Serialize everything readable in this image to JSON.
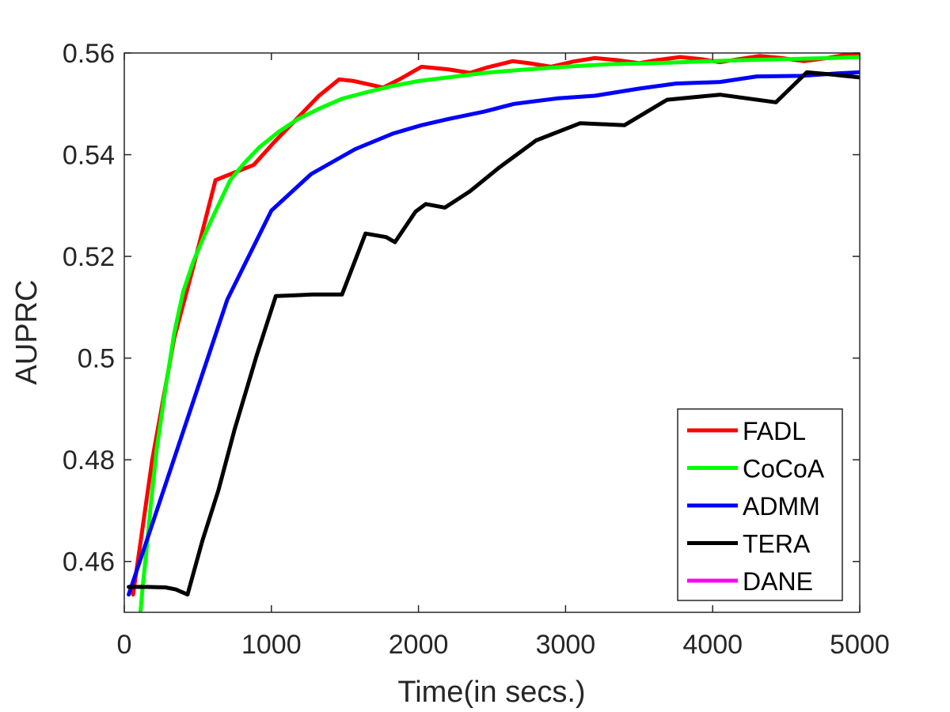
{
  "chart_data": {
    "type": "line",
    "xlabel": "Time(in secs.)",
    "ylabel": "AUPRC",
    "xlim": [
      0,
      5000
    ],
    "ylim": [
      0.45,
      0.56
    ],
    "x_ticks": [
      0,
      1000,
      2000,
      3000,
      4000,
      5000
    ],
    "x_tick_labels": [
      "0",
      "1000",
      "2000",
      "3000",
      "4000",
      "5000"
    ],
    "y_ticks": [
      0.46,
      0.48,
      0.5,
      0.52,
      0.54,
      0.56
    ],
    "y_tick_labels": [
      "0.46",
      "0.48",
      "0.5",
      "0.52",
      "0.54",
      "0.56"
    ],
    "grid": false,
    "box": true,
    "legend_position": "bottom-right",
    "series": [
      {
        "name": "FADL",
        "color": "#ff0000",
        "x": [
          60,
          190,
          340,
          470,
          620,
          750,
          880,
          1020,
          1170,
          1320,
          1460,
          1560,
          1760,
          1870,
          2020,
          2200,
          2350,
          2460,
          2640,
          2750,
          2900,
          3050,
          3200,
          3350,
          3500,
          3620,
          3780,
          3920,
          4050,
          4180,
          4320,
          4470,
          4620,
          4780,
          4900,
          5000
        ],
        "y": [
          0.4535,
          0.48,
          0.504,
          0.518,
          0.535,
          0.5365,
          0.538,
          0.5425,
          0.547,
          0.5515,
          0.5548,
          0.5545,
          0.5532,
          0.5548,
          0.5573,
          0.5568,
          0.5561,
          0.5571,
          0.5584,
          0.558,
          0.5573,
          0.5583,
          0.559,
          0.5586,
          0.558,
          0.5586,
          0.5592,
          0.5588,
          0.5582,
          0.5588,
          0.5594,
          0.559,
          0.5584,
          0.559,
          0.5596,
          0.5598
        ]
      },
      {
        "name": "CoCoA",
        "color": "#00ff00",
        "x": [
          110,
          125,
          150,
          180,
          220,
          280,
          340,
          400,
          470,
          550,
          630,
          720,
          820,
          920,
          1050,
          1180,
          1320,
          1480,
          1650,
          1820,
          2000,
          2200,
          2450,
          2700,
          3000,
          3300,
          3600,
          3900,
          4200,
          4500,
          4800,
          5000
        ],
        "y": [
          0.45,
          0.455,
          0.462,
          0.471,
          0.482,
          0.494,
          0.505,
          0.513,
          0.519,
          0.5245,
          0.5295,
          0.535,
          0.5385,
          0.5415,
          0.5445,
          0.547,
          0.549,
          0.551,
          0.5523,
          0.5535,
          0.5545,
          0.5552,
          0.5561,
          0.5567,
          0.5573,
          0.5578,
          0.558,
          0.5583,
          0.5586,
          0.5588,
          0.559,
          0.5592
        ]
      },
      {
        "name": "ADMM",
        "color": "#0000ff",
        "x": [
          30,
          700,
          1000,
          1270,
          1570,
          1830,
          2020,
          2200,
          2450,
          2650,
          2950,
          3200,
          3500,
          3750,
          4050,
          4300,
          4600,
          4850,
          5000
        ],
        "y": [
          0.4535,
          0.5115,
          0.529,
          0.5362,
          0.5411,
          0.5442,
          0.5458,
          0.547,
          0.5485,
          0.55,
          0.5511,
          0.5516,
          0.553,
          0.554,
          0.5543,
          0.5554,
          0.5555,
          0.556,
          0.5562
        ]
      },
      {
        "name": "TERA",
        "color": "#000000",
        "x": [
          30,
          150,
          280,
          350,
          430,
          530,
          640,
          750,
          900,
          1030,
          1280,
          1480,
          1640,
          1780,
          1840,
          1980,
          2050,
          2180,
          2350,
          2550,
          2800,
          3100,
          3400,
          3690,
          4050,
          4430,
          4640,
          4800,
          5000
        ],
        "y": [
          0.455,
          0.455,
          0.4549,
          0.4545,
          0.4535,
          0.464,
          0.474,
          0.486,
          0.5005,
          0.5122,
          0.5125,
          0.5125,
          0.5245,
          0.5238,
          0.5228,
          0.5288,
          0.5303,
          0.5296,
          0.5328,
          0.5375,
          0.5428,
          0.5462,
          0.5458,
          0.5508,
          0.5518,
          0.5503,
          0.5562,
          0.5558,
          0.5552
        ]
      },
      {
        "name": "DANE",
        "color": "#ff00ff",
        "x": [],
        "y": []
      }
    ]
  }
}
